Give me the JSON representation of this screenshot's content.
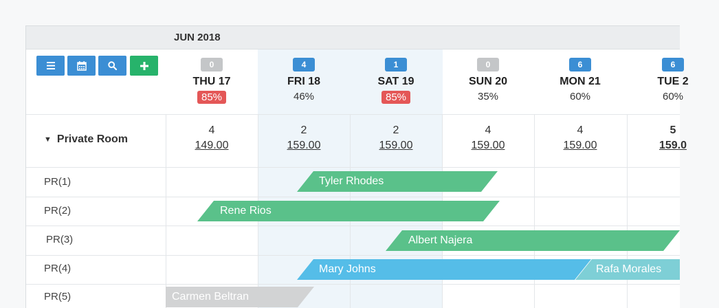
{
  "month": "JUN 2018",
  "toolbar": {
    "buttons": [
      {
        "icon": "list-icon",
        "color": "#3b8ed4"
      },
      {
        "icon": "calendar-icon",
        "color": "#3b8ed4"
      },
      {
        "icon": "search-icon",
        "color": "#3b8ed4"
      },
      {
        "icon": "plus-icon",
        "color": "#27b36b"
      }
    ]
  },
  "days": [
    {
      "badge": "0",
      "badge_color": "grey",
      "name": "THU 17",
      "occupancy": "85%",
      "occupancy_alert": true
    },
    {
      "badge": "4",
      "badge_color": "blue",
      "name": "FRI 18",
      "occupancy": "46%",
      "occupancy_alert": false
    },
    {
      "badge": "1",
      "badge_color": "blue",
      "name": "SAT 19",
      "occupancy": "85%",
      "occupancy_alert": true
    },
    {
      "badge": "0",
      "badge_color": "grey",
      "name": "SUN 20",
      "occupancy": "35%",
      "occupancy_alert": false
    },
    {
      "badge": "6",
      "badge_color": "blue",
      "name": "MON 21",
      "occupancy": "60%",
      "occupancy_alert": false
    },
    {
      "badge": "6",
      "badge_color": "blue",
      "name": "TUE 2",
      "occupancy": "60%",
      "occupancy_alert": false
    }
  ],
  "room_type": {
    "label": "Private Room",
    "availability": [
      {
        "count": "4",
        "price": "149.00"
      },
      {
        "count": "2",
        "price": "159.00"
      },
      {
        "count": "2",
        "price": "159.00"
      },
      {
        "count": "4",
        "price": "159.00"
      },
      {
        "count": "4",
        "price": "159.00"
      },
      {
        "count": "5",
        "price": "159.0"
      }
    ]
  },
  "rooms": [
    "PR(1)",
    "PR(2)",
    "PR(3)",
    "PR(4)",
    "PR(5)"
  ],
  "bookings": [
    {
      "guest": "Tyler Rhodes",
      "color": "#5ac18a"
    },
    {
      "guest": "Rene Rios",
      "color": "#5ac18a"
    },
    {
      "guest": "Albert Najera",
      "color": "#5ac18a"
    },
    {
      "guest": "Mary Johns",
      "color": "#55bde8"
    },
    {
      "guest": "Rafa Morales",
      "color": "#7ecfd6"
    },
    {
      "guest": "Carmen Beltran",
      "color": "#d2d3d4"
    }
  ],
  "colors": {
    "accent_blue": "#3b8ed4",
    "accent_green": "#27b36b",
    "alert_red": "#e45757",
    "selected_column": "#eef5fa"
  }
}
